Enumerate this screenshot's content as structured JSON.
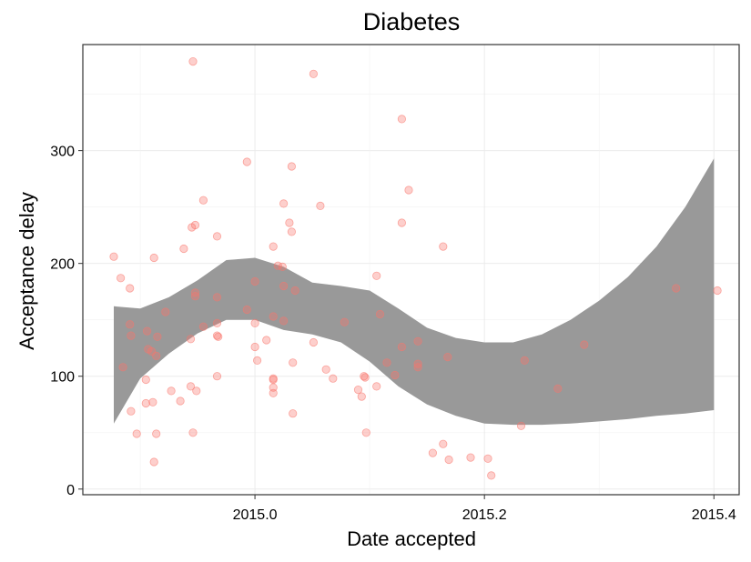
{
  "chart_data": {
    "type": "scatter",
    "title": "Diabetes",
    "xlabel": "Date accepted",
    "ylabel": "Acceptance delay",
    "xlim": [
      2014.85,
      2015.422
    ],
    "ylim": [
      -5,
      394
    ],
    "x_ticks": [
      2015.0,
      2015.2,
      2015.4
    ],
    "x_tick_labels": [
      "2015.0",
      "2015.2",
      "2015.4"
    ],
    "y_ticks": [
      0,
      100,
      200,
      300
    ],
    "y_tick_labels": [
      "0",
      "100",
      "200",
      "300"
    ],
    "grid": true,
    "point_color": "#f8766d",
    "band_color": "#999999",
    "points": [
      {
        "x": 2014.877,
        "y": 206
      },
      {
        "x": 2014.883,
        "y": 187
      },
      {
        "x": 2014.885,
        "y": 108
      },
      {
        "x": 2014.891,
        "y": 178
      },
      {
        "x": 2014.891,
        "y": 146
      },
      {
        "x": 2014.892,
        "y": 136
      },
      {
        "x": 2014.892,
        "y": 69
      },
      {
        "x": 2014.897,
        "y": 49
      },
      {
        "x": 2014.906,
        "y": 140
      },
      {
        "x": 2014.907,
        "y": 124
      },
      {
        "x": 2014.905,
        "y": 97
      },
      {
        "x": 2014.905,
        "y": 76
      },
      {
        "x": 2014.91,
        "y": 122
      },
      {
        "x": 2014.911,
        "y": 77
      },
      {
        "x": 2014.912,
        "y": 205
      },
      {
        "x": 2014.914,
        "y": 118
      },
      {
        "x": 2014.915,
        "y": 135
      },
      {
        "x": 2014.914,
        "y": 49
      },
      {
        "x": 2014.912,
        "y": 24
      },
      {
        "x": 2014.922,
        "y": 157
      },
      {
        "x": 2014.927,
        "y": 87
      },
      {
        "x": 2014.935,
        "y": 78
      },
      {
        "x": 2014.938,
        "y": 213
      },
      {
        "x": 2014.944,
        "y": 133
      },
      {
        "x": 2014.944,
        "y": 91
      },
      {
        "x": 2014.945,
        "y": 232
      },
      {
        "x": 2014.948,
        "y": 234
      },
      {
        "x": 2014.946,
        "y": 379
      },
      {
        "x": 2014.948,
        "y": 174
      },
      {
        "x": 2014.948,
        "y": 171
      },
      {
        "x": 2014.949,
        "y": 87
      },
      {
        "x": 2014.946,
        "y": 50
      },
      {
        "x": 2014.955,
        "y": 256
      },
      {
        "x": 2014.955,
        "y": 144
      },
      {
        "x": 2014.967,
        "y": 224
      },
      {
        "x": 2014.967,
        "y": 170
      },
      {
        "x": 2014.967,
        "y": 147
      },
      {
        "x": 2014.967,
        "y": 136
      },
      {
        "x": 2014.968,
        "y": 135
      },
      {
        "x": 2014.967,
        "y": 100
      },
      {
        "x": 2014.993,
        "y": 290
      },
      {
        "x": 2014.993,
        "y": 159
      },
      {
        "x": 2015.0,
        "y": 184
      },
      {
        "x": 2015.0,
        "y": 147
      },
      {
        "x": 2015.0,
        "y": 126
      },
      {
        "x": 2015.002,
        "y": 114
      },
      {
        "x": 2015.01,
        "y": 132
      },
      {
        "x": 2015.016,
        "y": 215
      },
      {
        "x": 2015.016,
        "y": 153
      },
      {
        "x": 2015.016,
        "y": 98
      },
      {
        "x": 2015.016,
        "y": 97
      },
      {
        "x": 2015.016,
        "y": 90
      },
      {
        "x": 2015.016,
        "y": 85
      },
      {
        "x": 2015.02,
        "y": 198
      },
      {
        "x": 2015.024,
        "y": 197
      },
      {
        "x": 2015.025,
        "y": 253
      },
      {
        "x": 2015.025,
        "y": 180
      },
      {
        "x": 2015.025,
        "y": 149
      },
      {
        "x": 2015.03,
        "y": 236
      },
      {
        "x": 2015.032,
        "y": 228
      },
      {
        "x": 2015.032,
        "y": 286
      },
      {
        "x": 2015.033,
        "y": 112
      },
      {
        "x": 2015.033,
        "y": 67
      },
      {
        "x": 2015.035,
        "y": 176
      },
      {
        "x": 2015.051,
        "y": 368
      },
      {
        "x": 2015.051,
        "y": 130
      },
      {
        "x": 2015.057,
        "y": 251
      },
      {
        "x": 2015.062,
        "y": 106
      },
      {
        "x": 2015.068,
        "y": 98
      },
      {
        "x": 2015.078,
        "y": 148
      },
      {
        "x": 2015.09,
        "y": 88
      },
      {
        "x": 2015.093,
        "y": 82
      },
      {
        "x": 2015.095,
        "y": 100
      },
      {
        "x": 2015.096,
        "y": 99
      },
      {
        "x": 2015.097,
        "y": 50
      },
      {
        "x": 2015.106,
        "y": 189
      },
      {
        "x": 2015.106,
        "y": 91
      },
      {
        "x": 2015.109,
        "y": 155
      },
      {
        "x": 2015.115,
        "y": 112
      },
      {
        "x": 2015.122,
        "y": 101
      },
      {
        "x": 2015.128,
        "y": 328
      },
      {
        "x": 2015.128,
        "y": 236
      },
      {
        "x": 2015.128,
        "y": 126
      },
      {
        "x": 2015.134,
        "y": 265
      },
      {
        "x": 2015.142,
        "y": 131
      },
      {
        "x": 2015.142,
        "y": 111
      },
      {
        "x": 2015.142,
        "y": 108
      },
      {
        "x": 2015.155,
        "y": 32
      },
      {
        "x": 2015.164,
        "y": 215
      },
      {
        "x": 2015.164,
        "y": 40
      },
      {
        "x": 2015.168,
        "y": 117
      },
      {
        "x": 2015.169,
        "y": 26
      },
      {
        "x": 2015.188,
        "y": 28
      },
      {
        "x": 2015.203,
        "y": 27
      },
      {
        "x": 2015.206,
        "y": 12
      },
      {
        "x": 2015.232,
        "y": 56
      },
      {
        "x": 2015.235,
        "y": 114
      },
      {
        "x": 2015.264,
        "y": 89
      },
      {
        "x": 2015.287,
        "y": 128
      },
      {
        "x": 2015.367,
        "y": 178
      },
      {
        "x": 2015.403,
        "y": 176
      }
    ],
    "smooth_band": {
      "x": [
        2014.877,
        2014.9,
        2014.925,
        2014.95,
        2014.975,
        2015.0,
        2015.025,
        2015.05,
        2015.075,
        2015.1,
        2015.125,
        2015.15,
        2015.175,
        2015.2,
        2015.225,
        2015.25,
        2015.275,
        2015.3,
        2015.325,
        2015.35,
        2015.375,
        2015.4
      ],
      "upper": [
        162,
        160,
        170,
        185,
        203,
        205,
        197,
        183,
        180,
        176,
        160,
        143,
        134,
        130,
        130,
        137,
        150,
        167,
        188,
        215,
        250,
        293
      ],
      "lower": [
        58,
        98,
        120,
        138,
        150,
        150,
        141,
        137,
        130,
        113,
        91,
        75,
        65,
        58,
        57,
        57,
        58,
        60,
        62,
        65,
        67,
        70
      ]
    }
  }
}
